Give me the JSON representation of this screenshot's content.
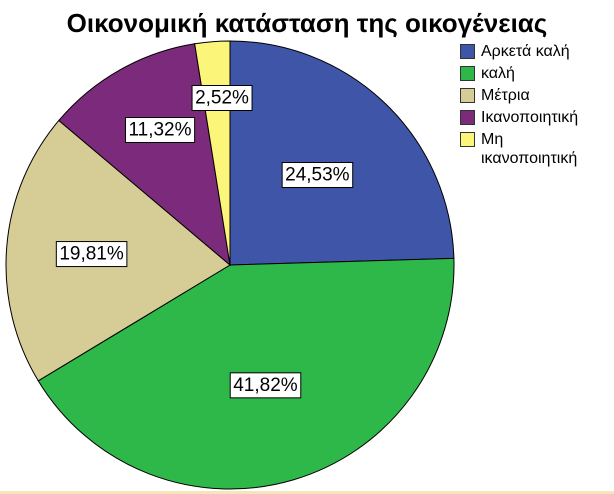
{
  "chart_data": {
    "type": "pie",
    "title": "Οικονομική κατάσταση της οικογένειας",
    "categories": [
      "Αρκετά καλή",
      "καλή",
      "Μέτρια",
      "Ικανοποιητική",
      "Μη ικανοποιητική"
    ],
    "values": [
      24.53,
      41.82,
      19.81,
      11.32,
      2.52
    ],
    "labels": [
      "24,53%",
      "41,82%",
      "19,81%",
      "11,32%",
      "2,52%"
    ],
    "colors": [
      "#3f56a8",
      "#2fb84a",
      "#d6cc96",
      "#7c2a7c",
      "#fbf67a"
    ],
    "legend_labels": [
      "Αρκετά καλή",
      "καλή",
      "Μέτρια",
      "Ικανοποιητική",
      "Μη\nικανοποιητική"
    ],
    "legend_position": "right",
    "start": "12 o'clock, clockwise"
  }
}
